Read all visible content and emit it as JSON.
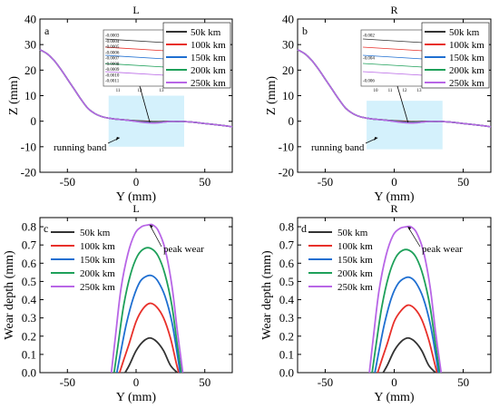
{
  "figure_note": "",
  "series_colors": {
    "50k km": "#333333",
    "100k km": "#e8302a",
    "150k km": "#1f6fd1",
    "200k km": "#1ea05a",
    "250k km": "#b866e6"
  },
  "chart_data": [
    {
      "type": "line",
      "panel": "a",
      "title": "L",
      "xlabel": "Y (mm)",
      "ylabel": "Z (mm)",
      "xlim": [
        -70,
        70
      ],
      "ylim": [
        -20,
        40
      ],
      "xticks": [
        -50,
        0,
        50
      ],
      "yticks": [
        -20,
        -10,
        0,
        10,
        20,
        30,
        40
      ],
      "legend_position": "top-right",
      "legend": [
        "50k km",
        "100k km",
        "150k km",
        "200k km",
        "250k km"
      ],
      "profile": {
        "x": [
          -70,
          -65,
          -60,
          -55,
          -50,
          -45,
          -40,
          -35,
          -30,
          -25,
          -20,
          -15,
          -10,
          -5,
          0,
          5,
          10,
          15,
          20,
          25,
          30,
          35,
          40,
          45,
          50,
          55,
          60,
          65,
          70
        ],
        "y": [
          28,
          26.5,
          24,
          20.5,
          16.5,
          12.5,
          8.5,
          5,
          3,
          1.8,
          1.2,
          0.8,
          0.6,
          0.4,
          0.3,
          0.2,
          0.1,
          0,
          0,
          0,
          -0.1,
          -0.1,
          -0.3,
          -0.6,
          -0.9,
          -1.2,
          -1.5,
          -1.8,
          -2.2
        ]
      },
      "wear_offsets": [
        0.19,
        0.38,
        0.53,
        0.68,
        0.81
      ],
      "band": {
        "label": "running band",
        "x": [
          -20,
          35
        ],
        "y": [
          -10,
          10
        ]
      },
      "annotation": "running band",
      "inset": {
        "xticks": [
          "11",
          "12",
          "13"
        ],
        "yticks": [
          "-0.0003",
          "-0.0004",
          "-0.0005",
          "-0.0006",
          "-0.0007",
          "-0.0008",
          "-0.0009",
          "-0.0010",
          "-0.0011"
        ]
      }
    },
    {
      "type": "line",
      "panel": "b",
      "title": "R",
      "xlabel": "Y (mm)",
      "ylabel": "",
      "xlim": [
        -70,
        70
      ],
      "ylim": [
        -20,
        40
      ],
      "xticks": [
        -50,
        0,
        50
      ],
      "yticks": [
        -20,
        -10,
        0,
        10,
        20,
        30,
        40
      ],
      "legend_position": "top-right",
      "legend": [
        "50k km",
        "100k km",
        "150k km",
        "200k km",
        "250k km"
      ],
      "profile": {
        "x": [
          -70,
          -65,
          -60,
          -55,
          -50,
          -45,
          -40,
          -35,
          -30,
          -25,
          -20,
          -15,
          -10,
          -5,
          0,
          5,
          10,
          15,
          20,
          25,
          30,
          35,
          40,
          45,
          50,
          55,
          60,
          65,
          70
        ],
        "y": [
          28,
          26.5,
          24,
          20.5,
          16.5,
          12.5,
          8.5,
          5,
          3,
          1.8,
          1.2,
          0.8,
          0.6,
          0.4,
          0.3,
          0.2,
          0.1,
          0,
          0,
          0,
          -0.1,
          -0.1,
          -0.3,
          -0.6,
          -0.9,
          -1.2,
          -1.5,
          -1.8,
          -2.2
        ]
      },
      "wear_offsets": [
        0.19,
        0.37,
        0.52,
        0.67,
        0.8
      ],
      "band": {
        "label": "running band",
        "x": [
          -20,
          35
        ],
        "y": [
          -11,
          8
        ]
      },
      "annotation": "running band",
      "inset": {
        "xticks": [
          "10",
          "11",
          "12",
          "13"
        ],
        "yticks": [
          "-0.002",
          "-0.004",
          "-0.006"
        ]
      }
    },
    {
      "type": "line",
      "panel": "c",
      "title": "L",
      "xlabel": "Y (mm)",
      "ylabel": "Wear depth (mm)",
      "xlim": [
        -70,
        70
      ],
      "ylim": [
        0,
        0.85
      ],
      "xticks": [
        -50,
        0,
        50
      ],
      "yticks": [
        0.0,
        0.1,
        0.2,
        0.3,
        0.4,
        0.5,
        0.6,
        0.7,
        0.8
      ],
      "legend_position": "top-left",
      "annotation": "peak wear",
      "series": [
        {
          "name": "50k km",
          "x": [
            -8,
            -5,
            0,
            5,
            10,
            15,
            20,
            25,
            30
          ],
          "y": [
            0.0,
            0.04,
            0.12,
            0.17,
            0.19,
            0.17,
            0.12,
            0.04,
            0.0
          ]
        },
        {
          "name": "100k km",
          "x": [
            -12,
            -9,
            -5,
            0,
            5,
            10,
            15,
            20,
            25,
            29,
            31
          ],
          "y": [
            0.0,
            0.07,
            0.16,
            0.28,
            0.35,
            0.38,
            0.36,
            0.3,
            0.19,
            0.06,
            0.0
          ]
        },
        {
          "name": "150k km",
          "x": [
            -14,
            -11,
            -7,
            -2,
            3,
            8,
            12,
            16,
            21,
            26,
            30,
            32
          ],
          "y": [
            0.0,
            0.12,
            0.27,
            0.41,
            0.5,
            0.53,
            0.53,
            0.5,
            0.42,
            0.28,
            0.1,
            0.0
          ]
        },
        {
          "name": "200k km",
          "x": [
            -16,
            -13,
            -9,
            -4,
            1,
            6,
            11,
            16,
            21,
            26,
            30,
            33
          ],
          "y": [
            0.0,
            0.16,
            0.37,
            0.54,
            0.64,
            0.68,
            0.68,
            0.64,
            0.54,
            0.37,
            0.15,
            0.0
          ]
        },
        {
          "name": "250k km",
          "x": [
            -18,
            -15,
            -11,
            -6,
            -1,
            4,
            9,
            12,
            16,
            21,
            26,
            30,
            34
          ],
          "y": [
            0.0,
            0.2,
            0.46,
            0.65,
            0.76,
            0.8,
            0.81,
            0.81,
            0.78,
            0.68,
            0.48,
            0.23,
            0.0
          ]
        }
      ]
    },
    {
      "type": "line",
      "panel": "d",
      "title": "R",
      "xlabel": "Y (mm)",
      "ylabel": "Wear depth (mm)",
      "xlim": [
        -70,
        70
      ],
      "ylim": [
        0,
        0.85
      ],
      "xticks": [
        -50,
        0,
        50
      ],
      "yticks": [
        0.0,
        0.1,
        0.2,
        0.3,
        0.4,
        0.5,
        0.6,
        0.7,
        0.8
      ],
      "legend_position": "top-left",
      "annotation": "peak wear",
      "series": [
        {
          "name": "50k km",
          "x": [
            -8,
            -5,
            0,
            5,
            10,
            15,
            20,
            25,
            30
          ],
          "y": [
            0.0,
            0.04,
            0.12,
            0.17,
            0.19,
            0.17,
            0.12,
            0.04,
            0.0
          ]
        },
        {
          "name": "100k km",
          "x": [
            -12,
            -9,
            -5,
            0,
            5,
            10,
            15,
            20,
            25,
            29,
            31
          ],
          "y": [
            0.0,
            0.07,
            0.16,
            0.28,
            0.34,
            0.37,
            0.35,
            0.29,
            0.18,
            0.06,
            0.0
          ]
        },
        {
          "name": "150k km",
          "x": [
            -14,
            -11,
            -7,
            -2,
            3,
            8,
            12,
            16,
            21,
            26,
            30,
            32
          ],
          "y": [
            0.0,
            0.12,
            0.27,
            0.41,
            0.49,
            0.52,
            0.52,
            0.49,
            0.41,
            0.27,
            0.1,
            0.0
          ]
        },
        {
          "name": "200k km",
          "x": [
            -16,
            -13,
            -9,
            -4,
            1,
            6,
            11,
            16,
            21,
            26,
            30,
            33
          ],
          "y": [
            0.0,
            0.16,
            0.36,
            0.53,
            0.63,
            0.67,
            0.67,
            0.63,
            0.53,
            0.36,
            0.15,
            0.0
          ]
        },
        {
          "name": "250k km",
          "x": [
            -18,
            -15,
            -11,
            -6,
            -1,
            4,
            9,
            12,
            16,
            21,
            26,
            30,
            34
          ],
          "y": [
            0.0,
            0.2,
            0.45,
            0.64,
            0.75,
            0.79,
            0.8,
            0.8,
            0.77,
            0.67,
            0.47,
            0.22,
            0.0
          ]
        }
      ]
    }
  ]
}
